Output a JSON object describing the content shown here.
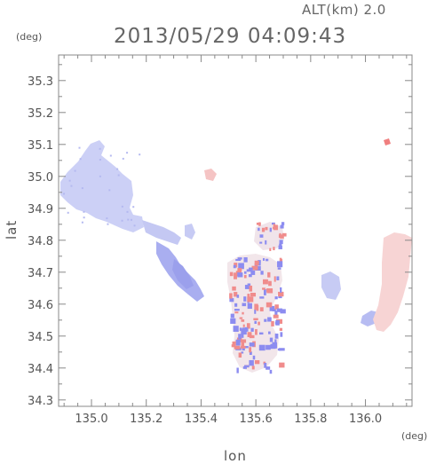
{
  "header": {
    "altitude_label": "ALT(km) 2.0",
    "timestamp": "2013/05/29 04:09:43"
  },
  "axes": {
    "y_unit": "(deg)",
    "x_unit": "(deg)",
    "xlabel": "lon",
    "ylabel": "lat",
    "x_ticks": [
      "135.0",
      "135.2",
      "135.4",
      "135.6",
      "135.8",
      "136.0"
    ],
    "y_ticks": [
      "35.3",
      "35.2",
      "35.1",
      "35.0",
      "34.9",
      "34.8",
      "34.7",
      "34.6",
      "34.5",
      "34.4",
      "34.3"
    ],
    "xlim": [
      134.88,
      136.17
    ],
    "ylim": [
      34.28,
      35.38
    ]
  },
  "colors": {
    "negative": "#8c8cf0",
    "positive": "#f08c8c",
    "frame": "#888888"
  }
}
